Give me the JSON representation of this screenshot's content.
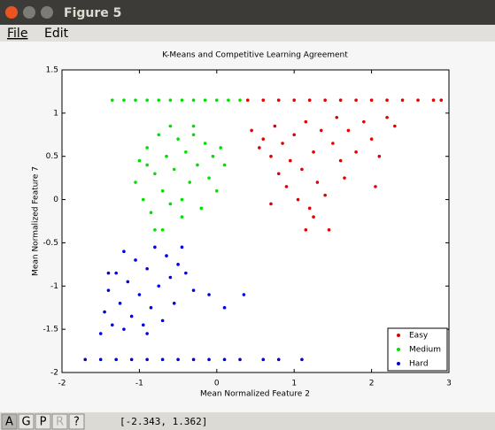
{
  "window": {
    "title": "Figure 5",
    "menu": [
      "File",
      "Edit"
    ],
    "toolbar": [
      "A",
      "G",
      "P",
      "R",
      "?"
    ],
    "status": "[-2.343, 1.362]"
  },
  "chart_data": {
    "type": "scatter",
    "title": "K-Means and Competitive Learning Agreement",
    "x_label": "Mean Normalized Feature 2",
    "y_label": "Mean Normalized Feature 7",
    "xlim": [
      -2,
      3
    ],
    "ylim": [
      -2,
      1.5
    ],
    "xticks": [
      -2,
      -1,
      0,
      1,
      2,
      3
    ],
    "yticks": [
      -2,
      -1.5,
      -1,
      -0.5,
      0,
      0.5,
      1,
      1.5
    ],
    "legend": "lower right",
    "grid": false,
    "series": [
      {
        "name": "Easy",
        "color": "#e00000",
        "x": [
          0.4,
          0.6,
          0.8,
          1.0,
          1.2,
          1.4,
          1.6,
          1.8,
          2.0,
          2.2,
          2.4,
          2.6,
          2.8,
          2.9,
          0.45,
          0.55,
          0.6,
          0.7,
          0.75,
          0.8,
          0.85,
          0.9,
          0.95,
          1.0,
          1.05,
          1.1,
          1.15,
          1.2,
          1.25,
          1.3,
          1.35,
          1.4,
          1.5,
          1.55,
          1.6,
          1.7,
          1.8,
          1.9,
          2.0,
          2.1,
          2.2,
          2.3,
          1.15,
          1.25,
          1.45,
          0.7,
          2.05,
          1.65
        ],
        "y": [
          1.15,
          1.15,
          1.15,
          1.15,
          1.15,
          1.15,
          1.15,
          1.15,
          1.15,
          1.15,
          1.15,
          1.15,
          1.15,
          1.15,
          0.8,
          0.6,
          0.7,
          0.5,
          0.85,
          0.3,
          0.65,
          0.15,
          0.45,
          0.75,
          0.0,
          0.35,
          0.9,
          -0.1,
          0.55,
          0.2,
          0.8,
          0.05,
          0.65,
          0.95,
          0.45,
          0.8,
          0.55,
          0.9,
          0.7,
          0.5,
          0.95,
          0.85,
          -0.35,
          -0.2,
          -0.35,
          -0.05,
          0.15,
          0.25
        ]
      },
      {
        "name": "Medium",
        "color": "#00e000",
        "x": [
          -1.35,
          -1.2,
          -1.05,
          -0.9,
          -0.75,
          -0.6,
          -0.45,
          -0.3,
          -0.15,
          0.0,
          0.15,
          0.3,
          -1.05,
          -1.0,
          -0.95,
          -0.9,
          -0.85,
          -0.8,
          -0.75,
          -0.7,
          -0.65,
          -0.6,
          -0.55,
          -0.5,
          -0.45,
          -0.4,
          -0.35,
          -0.3,
          -0.25,
          -0.2,
          -0.15,
          -0.1,
          -0.05,
          0.0,
          0.05,
          0.1,
          -0.6,
          -0.45,
          -0.7,
          -0.8,
          -0.3,
          -0.9
        ],
        "y": [
          1.15,
          1.15,
          1.15,
          1.15,
          1.15,
          1.15,
          1.15,
          1.15,
          1.15,
          1.15,
          1.15,
          1.15,
          0.2,
          0.45,
          0.0,
          0.6,
          -0.15,
          0.3,
          0.75,
          0.1,
          0.5,
          -0.05,
          0.35,
          0.7,
          0.0,
          0.55,
          0.2,
          0.85,
          0.4,
          -0.1,
          0.65,
          0.25,
          0.5,
          0.1,
          0.6,
          0.4,
          0.85,
          -0.2,
          -0.35,
          -0.35,
          0.75,
          0.4
        ]
      },
      {
        "name": "Hard",
        "color": "#0000e0",
        "x": [
          -1.7,
          -1.5,
          -1.3,
          -1.1,
          -0.9,
          -0.7,
          -0.5,
          -0.3,
          -0.1,
          0.1,
          0.3,
          0.6,
          0.8,
          1.1,
          -1.5,
          -1.45,
          -1.4,
          -1.35,
          -1.3,
          -1.25,
          -1.2,
          -1.15,
          -1.1,
          -1.05,
          -1.0,
          -0.95,
          -0.9,
          -0.85,
          -0.8,
          -0.75,
          -0.7,
          -0.65,
          -0.6,
          -0.55,
          -0.5,
          -0.45,
          -0.4,
          -0.3,
          -0.1,
          0.1,
          0.35,
          -1.2,
          -1.4,
          -0.9
        ],
        "y": [
          -1.85,
          -1.85,
          -1.85,
          -1.85,
          -1.85,
          -1.85,
          -1.85,
          -1.85,
          -1.85,
          -1.85,
          -1.85,
          -1.85,
          -1.85,
          -1.85,
          -1.55,
          -1.3,
          -1.05,
          -1.45,
          -0.85,
          -1.2,
          -1.5,
          -0.95,
          -1.35,
          -0.7,
          -1.1,
          -1.45,
          -0.8,
          -1.25,
          -0.55,
          -1.0,
          -1.4,
          -0.65,
          -0.9,
          -1.2,
          -0.75,
          -0.55,
          -0.85,
          -1.05,
          -1.1,
          -1.25,
          -1.1,
          -0.6,
          -0.85,
          -1.55
        ]
      }
    ]
  }
}
